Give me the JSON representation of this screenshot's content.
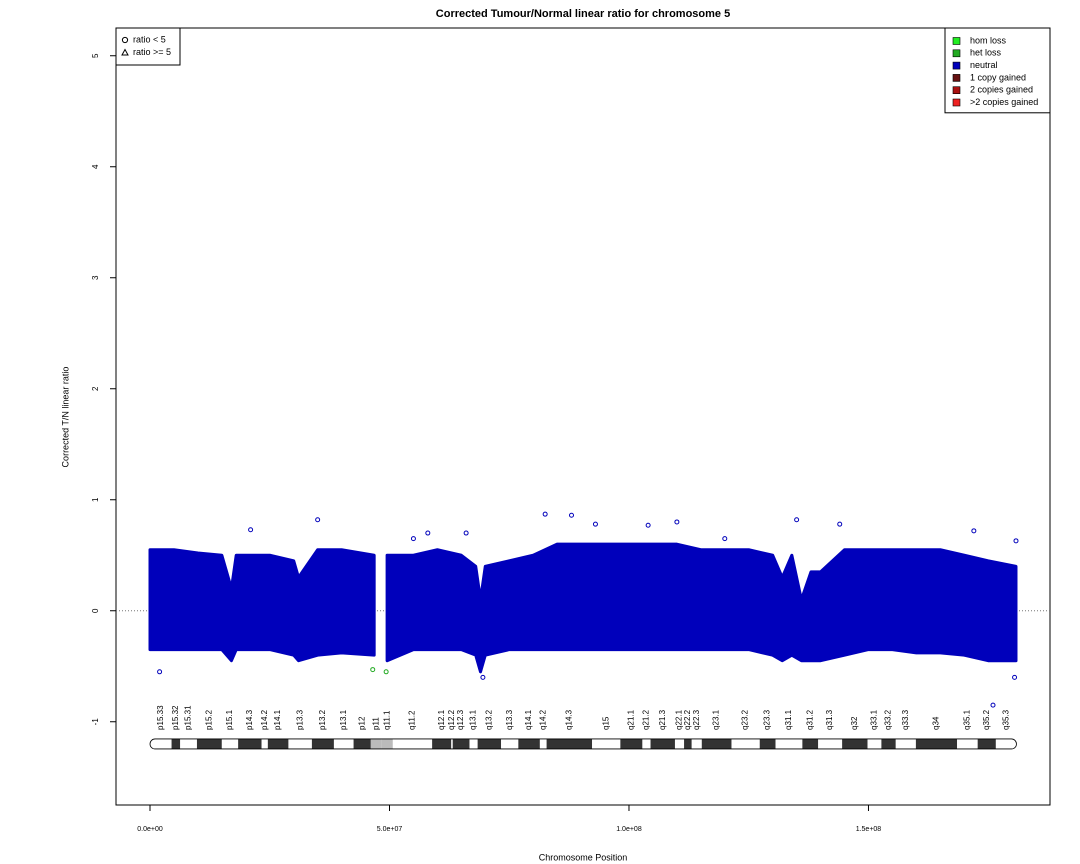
{
  "chart_data": {
    "type": "scatter",
    "title": "Corrected Tumour/Normal linear ratio for chromosome  5",
    "x_label": "Chromosome Position",
    "y_label": "Corrected T/N linear ratio",
    "xlim": [
      -7100000,
      187900000
    ],
    "ylim": [
      -1.75,
      5.25
    ],
    "xticks": [
      {
        "value": 0,
        "label": "0.0e+00"
      },
      {
        "value": 50000000,
        "label": "5.0e+07"
      },
      {
        "value": 100000000,
        "label": "1.0e+08"
      },
      {
        "value": 150000000,
        "label": "1.5e+08"
      }
    ],
    "yticks": [
      -1,
      0,
      1,
      2,
      3,
      4,
      5
    ],
    "reference_line": 0,
    "legend": "top-right",
    "shape_legend": {
      "position": "top-left",
      "labels": [
        "ratio < 5",
        "ratio >= 5"
      ]
    },
    "series": [
      {
        "name": "hom loss",
        "color": "#22ee22",
        "x": [],
        "values": []
      },
      {
        "name": "het loss",
        "color": "#22aa22",
        "x": [
          46500000,
          49300000
        ],
        "values": [
          -0.53,
          -0.55
        ]
      },
      {
        "name": "neutral",
        "color": "#0000bb",
        "x": [
          2000000,
          21000000,
          35000000,
          55000000,
          58000000,
          66000000,
          69500000,
          82500000,
          88000000,
          93000000,
          104000000,
          110000000,
          120000000,
          135000000,
          144000000,
          172000000,
          176000000,
          180500000,
          180800000
        ],
        "values": [
          -0.55,
          0.73,
          0.82,
          0.65,
          0.7,
          0.7,
          -0.6,
          0.87,
          0.86,
          0.78,
          0.77,
          0.8,
          0.65,
          0.82,
          0.78,
          0.72,
          -0.85,
          -0.6,
          0.63
        ],
        "range": {
          "x": [
            0,
            5000000,
            10000000,
            15000000,
            17000000,
            18000000,
            25000000,
            30000000,
            31000000,
            35000000,
            40000000,
            46800000,
            null,
            49500000,
            55000000,
            60000000,
            65000000,
            68000000,
            69000000,
            70000000,
            75000000,
            80000000,
            85000000,
            90000000,
            95000000,
            100000000,
            105000000,
            110000000,
            115000000,
            120000000,
            125000000,
            130000000,
            132000000,
            134000000,
            136000000,
            138000000,
            140000000,
            145000000,
            150000000,
            155000000,
            160000000,
            165000000,
            170000000,
            175000000,
            180800000
          ],
          "high": [
            0.55,
            0.55,
            0.52,
            0.5,
            0.2,
            0.5,
            0.5,
            0.45,
            0.3,
            0.55,
            0.55,
            0.5,
            null,
            0.5,
            0.5,
            0.55,
            0.5,
            0.4,
            0.1,
            0.4,
            0.45,
            0.5,
            0.6,
            0.6,
            0.6,
            0.6,
            0.6,
            0.6,
            0.55,
            0.55,
            0.55,
            0.5,
            0.3,
            0.5,
            0.1,
            0.35,
            0.35,
            0.55,
            0.55,
            0.55,
            0.55,
            0.55,
            0.5,
            0.45,
            0.4
          ],
          "low": [
            -0.35,
            -0.35,
            -0.35,
            -0.35,
            -0.45,
            -0.35,
            -0.35,
            -0.4,
            -0.45,
            -0.4,
            -0.38,
            -0.4,
            null,
            -0.45,
            -0.35,
            -0.35,
            -0.35,
            -0.4,
            -0.55,
            -0.4,
            -0.35,
            -0.35,
            -0.35,
            -0.35,
            -0.35,
            -0.35,
            -0.35,
            -0.35,
            -0.35,
            -0.35,
            -0.35,
            -0.4,
            -0.45,
            -0.4,
            -0.45,
            -0.45,
            -0.45,
            -0.4,
            -0.35,
            -0.35,
            -0.38,
            -0.38,
            -0.4,
            -0.45,
            -0.45
          ]
        }
      },
      {
        "name": "1 copy gained",
        "color": "#661111",
        "x": [],
        "values": []
      },
      {
        "name": "2 copies gained",
        "color": "#aa1111",
        "x": [],
        "values": []
      },
      {
        "name": ">2 copies gained",
        "color": "#ee2222",
        "x": [],
        "values": []
      }
    ],
    "ideogram": {
      "y": -1.2,
      "bands": [
        {
          "name": "p15.33",
          "start": 0,
          "end": 4500000,
          "color": "#ffffff"
        },
        {
          "name": "p15.32",
          "start": 4500000,
          "end": 6300000,
          "color": "#333333"
        },
        {
          "name": "p15.31",
          "start": 6300000,
          "end": 9800000,
          "color": "#ffffff"
        },
        {
          "name": "p15.2",
          "start": 9800000,
          "end": 15000000,
          "color": "#333333"
        },
        {
          "name": "p15.1",
          "start": 15000000,
          "end": 18400000,
          "color": "#ffffff"
        },
        {
          "name": "p14.3",
          "start": 18400000,
          "end": 23300000,
          "color": "#333333"
        },
        {
          "name": "p14.2",
          "start": 23300000,
          "end": 24600000,
          "color": "#ffffff"
        },
        {
          "name": "p14.1",
          "start": 24600000,
          "end": 28900000,
          "color": "#333333"
        },
        {
          "name": "p13.3",
          "start": 28900000,
          "end": 33800000,
          "color": "#ffffff"
        },
        {
          "name": "p13.2",
          "start": 33800000,
          "end": 38400000,
          "color": "#333333"
        },
        {
          "name": "p13.1",
          "start": 38400000,
          "end": 42500000,
          "color": "#ffffff"
        },
        {
          "name": "p12",
          "start": 42500000,
          "end": 46100000,
          "color": "#333333"
        },
        {
          "name": "p11",
          "start": 46100000,
          "end": 48400000,
          "color": "#bbbbbb"
        },
        {
          "name": "q11.1",
          "start": 48400000,
          "end": 50700000,
          "color": "#bbbbbb"
        },
        {
          "name": "q11.2",
          "start": 50700000,
          "end": 58900000,
          "color": "#ffffff"
        },
        {
          "name": "q12.1",
          "start": 58900000,
          "end": 62900000,
          "color": "#333333"
        },
        {
          "name": "q12.2",
          "start": 62900000,
          "end": 63200000,
          "color": "#ffffff"
        },
        {
          "name": "q12.3",
          "start": 63200000,
          "end": 66700000,
          "color": "#333333"
        },
        {
          "name": "q13.1",
          "start": 66700000,
          "end": 68400000,
          "color": "#ffffff"
        },
        {
          "name": "q13.2",
          "start": 68400000,
          "end": 73300000,
          "color": "#333333"
        },
        {
          "name": "q13.3",
          "start": 73300000,
          "end": 76900000,
          "color": "#ffffff"
        },
        {
          "name": "q14.1",
          "start": 76900000,
          "end": 81400000,
          "color": "#333333"
        },
        {
          "name": "q14.2",
          "start": 81400000,
          "end": 82800000,
          "color": "#ffffff"
        },
        {
          "name": "q14.3",
          "start": 82800000,
          "end": 92300000,
          "color": "#333333"
        },
        {
          "name": "q15",
          "start": 92300000,
          "end": 98200000,
          "color": "#ffffff"
        },
        {
          "name": "q21.1",
          "start": 98200000,
          "end": 102800000,
          "color": "#333333"
        },
        {
          "name": "q21.2",
          "start": 102800000,
          "end": 104500000,
          "color": "#ffffff"
        },
        {
          "name": "q21.3",
          "start": 104500000,
          "end": 109600000,
          "color": "#333333"
        },
        {
          "name": "q22.1",
          "start": 109600000,
          "end": 111500000,
          "color": "#ffffff"
        },
        {
          "name": "q22.2",
          "start": 111500000,
          "end": 113100000,
          "color": "#333333"
        },
        {
          "name": "q22.3",
          "start": 113100000,
          "end": 115200000,
          "color": "#ffffff"
        },
        {
          "name": "q23.1",
          "start": 115200000,
          "end": 121400000,
          "color": "#333333"
        },
        {
          "name": "q23.2",
          "start": 121400000,
          "end": 127300000,
          "color": "#ffffff"
        },
        {
          "name": "q23.3",
          "start": 127300000,
          "end": 130600000,
          "color": "#333333"
        },
        {
          "name": "q31.1",
          "start": 130600000,
          "end": 136200000,
          "color": "#ffffff"
        },
        {
          "name": "q31.2",
          "start": 136200000,
          "end": 139500000,
          "color": "#333333"
        },
        {
          "name": "q31.3",
          "start": 139500000,
          "end": 144500000,
          "color": "#ffffff"
        },
        {
          "name": "q32",
          "start": 144500000,
          "end": 149800000,
          "color": "#333333"
        },
        {
          "name": "q33.1",
          "start": 149800000,
          "end": 152700000,
          "color": "#ffffff"
        },
        {
          "name": "q33.2",
          "start": 152700000,
          "end": 155700000,
          "color": "#333333"
        },
        {
          "name": "q33.3",
          "start": 155700000,
          "end": 159900000,
          "color": "#ffffff"
        },
        {
          "name": "q34",
          "start": 159900000,
          "end": 168500000,
          "color": "#333333"
        },
        {
          "name": "q35.1",
          "start": 168500000,
          "end": 172800000,
          "color": "#ffffff"
        },
        {
          "name": "q35.2",
          "start": 172800000,
          "end": 176600000,
          "color": "#333333"
        },
        {
          "name": "q35.3",
          "start": 176600000,
          "end": 180900000,
          "color": "#ffffff"
        }
      ]
    }
  }
}
